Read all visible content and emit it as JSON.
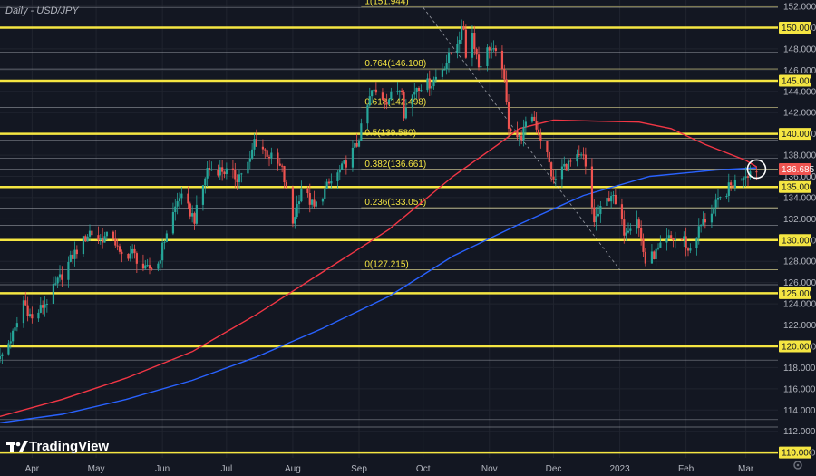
{
  "title": "Daily - USD/JPY",
  "brand": {
    "logo_text": "TradingView"
  },
  "chart_data": {
    "type": "candlestick",
    "symbol": "USD/JPY",
    "timeframe": "Daily",
    "ylim": [
      109.5,
      152.6
    ],
    "y_ticks": [
      110,
      112,
      114,
      116,
      118,
      120,
      122,
      124,
      126,
      128,
      130,
      132,
      134,
      136,
      138,
      140,
      142,
      144,
      146,
      148,
      150,
      152
    ],
    "x_ticks": [
      {
        "label": "Apr",
        "date": "2022-04-01"
      },
      {
        "label": "May",
        "date": "2022-05-01"
      },
      {
        "label": "Jun",
        "date": "2022-06-01"
      },
      {
        "label": "Jul",
        "date": "2022-07-01"
      },
      {
        "label": "Aug",
        "date": "2022-08-01"
      },
      {
        "label": "Sep",
        "date": "2022-09-01"
      },
      {
        "label": "Oct",
        "date": "2022-10-01"
      },
      {
        "label": "Nov",
        "date": "2022-11-01"
      },
      {
        "label": "Dec",
        "date": "2022-12-01"
      },
      {
        "label": "2023",
        "date": "2023-01-01"
      },
      {
        "label": "Feb",
        "date": "2023-02-01"
      },
      {
        "label": "Mar",
        "date": "2023-03-01"
      }
    ],
    "xlim": [
      "2022-03-17",
      "2023-03-16"
    ],
    "key_levels": [
      150,
      145,
      140,
      135,
      130,
      125,
      120,
      110
    ],
    "minor_levels": [
      151.9,
      147.7,
      146.1,
      142.5,
      139.4,
      137.7,
      136.7,
      133.0,
      131.4,
      127.2,
      125.8,
      118.7,
      113.1,
      112.4
    ],
    "current_price": {
      "value": 136.685,
      "label": "136.685"
    },
    "fib_levels": [
      {
        "label": "1(151.944)",
        "value": 151.944
      },
      {
        "label": "0.764(146.108)",
        "value": 146.108
      },
      {
        "label": "0.618(142.498)",
        "value": 142.498
      },
      {
        "label": "0.5(139.580)",
        "value": 139.58
      },
      {
        "label": "0.382(136.661)",
        "value": 136.661
      },
      {
        "label": "0.236(133.051)",
        "value": 133.051
      },
      {
        "label": "0(127.215)",
        "value": 127.215
      }
    ],
    "fib_range": {
      "start": "2022-09-02",
      "end": "2023-03-16"
    },
    "fib_trendline": {
      "from": {
        "date": "2022-10-01",
        "value": 151.9
      },
      "to": {
        "date": "2023-01-01",
        "value": 127.2
      }
    },
    "ma_red": [
      [
        "2022-03-17",
        113.4
      ],
      [
        "2022-04-15",
        115.0
      ],
      [
        "2022-05-15",
        117.0
      ],
      [
        "2022-06-15",
        119.5
      ],
      [
        "2022-07-15",
        123.0
      ],
      [
        "2022-08-15",
        127.0
      ],
      [
        "2022-09-15",
        131.0
      ],
      [
        "2022-10-15",
        136.0
      ],
      [
        "2022-11-05",
        139.0
      ],
      [
        "2022-11-15",
        140.5
      ],
      [
        "2022-12-01",
        141.3
      ],
      [
        "2022-12-20",
        141.2
      ],
      [
        "2023-01-10",
        141.1
      ],
      [
        "2023-01-25",
        140.5
      ],
      [
        "2023-02-10",
        139.0
      ],
      [
        "2023-03-01",
        137.5
      ],
      [
        "2023-03-06",
        136.9
      ]
    ],
    "ma_blue": [
      [
        "2022-03-17",
        112.8
      ],
      [
        "2022-04-15",
        113.6
      ],
      [
        "2022-05-15",
        115.0
      ],
      [
        "2022-06-15",
        116.8
      ],
      [
        "2022-07-15",
        119.0
      ],
      [
        "2022-08-15",
        121.7
      ],
      [
        "2022-09-15",
        124.7
      ],
      [
        "2022-10-15",
        128.5
      ],
      [
        "2022-11-15",
        131.5
      ],
      [
        "2022-12-15",
        134.2
      ],
      [
        "2023-01-15",
        136.0
      ],
      [
        "2023-02-15",
        136.6
      ],
      [
        "2023-03-06",
        136.8
      ]
    ],
    "price_path": [
      [
        "2022-03-17",
        118.8
      ],
      [
        "2022-03-24",
        121.5
      ],
      [
        "2022-03-28",
        124.3
      ],
      [
        "2022-04-01",
        122.5
      ],
      [
        "2022-04-08",
        124.3
      ],
      [
        "2022-04-14",
        126.4
      ],
      [
        "2022-04-20",
        128.5
      ],
      [
        "2022-04-28",
        130.8
      ],
      [
        "2022-05-02",
        130.1
      ],
      [
        "2022-05-09",
        130.4
      ],
      [
        "2022-05-12",
        128.5
      ],
      [
        "2022-05-18",
        128.8
      ],
      [
        "2022-05-24",
        127.1
      ],
      [
        "2022-05-30",
        127.8
      ],
      [
        "2022-06-03",
        130.8
      ],
      [
        "2022-06-09",
        134.2
      ],
      [
        "2022-06-16",
        132.0
      ],
      [
        "2022-06-22",
        136.7
      ],
      [
        "2022-06-29",
        136.6
      ],
      [
        "2022-07-06",
        135.9
      ],
      [
        "2022-07-12",
        137.4
      ],
      [
        "2022-07-14",
        139.4
      ],
      [
        "2022-07-20",
        138.2
      ],
      [
        "2022-07-27",
        136.6
      ],
      [
        "2022-08-01",
        131.6
      ],
      [
        "2022-08-05",
        135.0
      ],
      [
        "2022-08-11",
        133.0
      ],
      [
        "2022-08-17",
        135.0
      ],
      [
        "2022-08-24",
        136.7
      ],
      [
        "2022-08-31",
        139.0
      ],
      [
        "2022-09-07",
        144.0
      ],
      [
        "2022-09-14",
        143.2
      ],
      [
        "2022-09-21",
        144.5
      ],
      [
        "2022-09-22",
        142.0
      ],
      [
        "2022-09-28",
        144.5
      ],
      [
        "2022-10-05",
        144.8
      ],
      [
        "2022-10-12",
        146.8
      ],
      [
        "2022-10-20",
        150.0
      ],
      [
        "2022-10-21",
        147.5
      ],
      [
        "2022-10-24",
        149.5
      ],
      [
        "2022-10-27",
        146.4
      ],
      [
        "2022-11-01",
        148.2
      ],
      [
        "2022-11-07",
        146.5
      ],
      [
        "2022-11-10",
        140.9
      ],
      [
        "2022-11-15",
        139.5
      ],
      [
        "2022-11-21",
        141.8
      ],
      [
        "2022-11-28",
        138.0
      ],
      [
        "2022-12-01",
        135.4
      ],
      [
        "2022-12-05",
        136.8
      ],
      [
        "2022-12-12",
        137.6
      ],
      [
        "2022-12-15",
        137.8
      ],
      [
        "2022-12-20",
        131.8
      ],
      [
        "2022-12-28",
        134.4
      ],
      [
        "2023-01-03",
        130.9
      ],
      [
        "2023-01-09",
        132.2
      ],
      [
        "2023-01-13",
        127.9
      ],
      [
        "2023-01-18",
        128.8
      ],
      [
        "2023-01-24",
        130.1
      ],
      [
        "2023-01-31",
        130.1
      ],
      [
        "2023-02-02",
        128.9
      ],
      [
        "2023-02-08",
        131.4
      ],
      [
        "2023-02-14",
        133.0
      ],
      [
        "2023-02-21",
        134.9
      ],
      [
        "2023-02-28",
        136.2
      ],
      [
        "2023-03-06",
        136.685
      ]
    ]
  },
  "colors": {
    "background": "#131722",
    "bull": "#26a69a",
    "bear": "#ef5350",
    "key_level": "#f5e642",
    "ma_red": "#f23645",
    "ma_blue": "#2962ff",
    "price_tag": "#ef5350"
  }
}
